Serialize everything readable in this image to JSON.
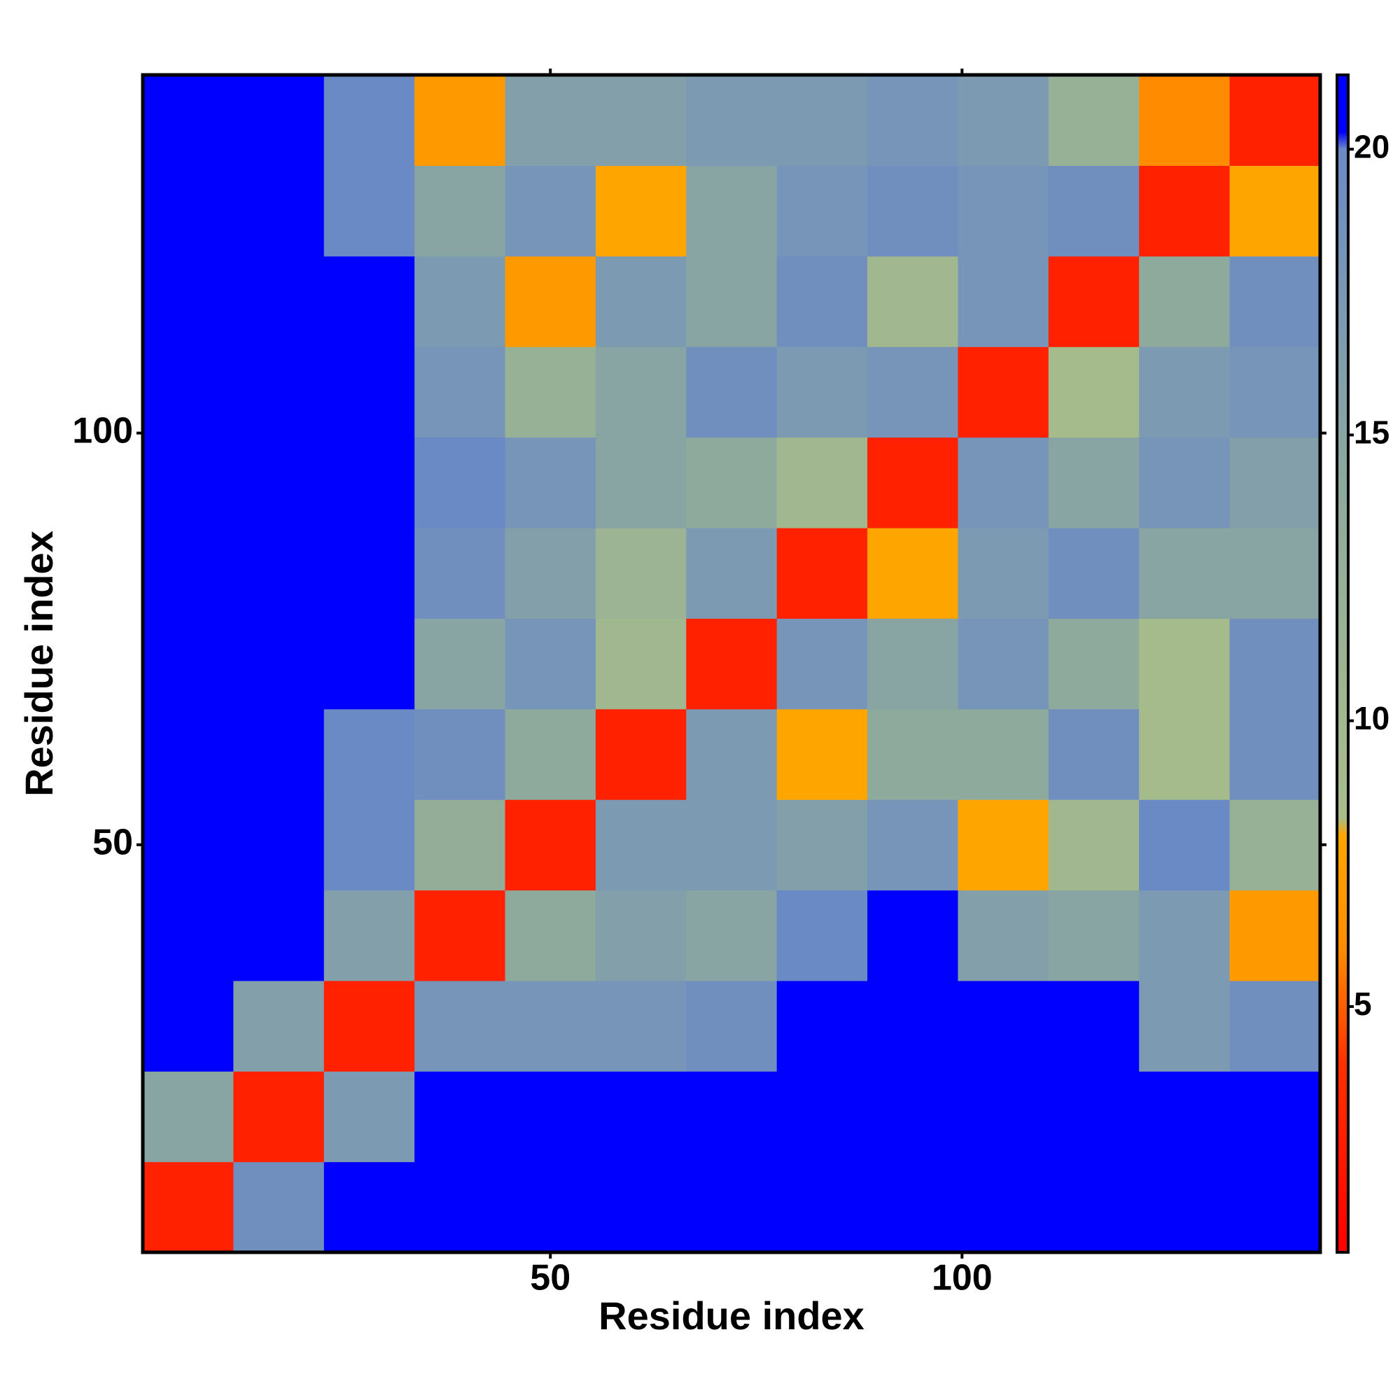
{
  "chart_data": {
    "type": "heatmap",
    "xlabel": "Residue index",
    "ylabel": "Residue index",
    "x": [
      6,
      17,
      28,
      39,
      50,
      61,
      72,
      83,
      94,
      105,
      116,
      127,
      138
    ],
    "y": [
      6,
      17,
      28,
      39,
      50,
      61,
      72,
      83,
      94,
      105,
      116,
      127,
      138
    ],
    "z": [
      [
        3,
        19,
        21,
        21,
        21,
        21,
        21,
        21,
        21,
        21,
        21,
        21,
        21
      ],
      [
        15,
        3,
        17,
        21,
        21,
        21,
        21,
        21,
        21,
        21,
        21,
        21,
        21
      ],
      [
        21,
        16,
        3,
        18,
        18,
        18,
        19,
        20.5,
        21,
        21,
        20.5,
        17,
        19
      ],
      [
        21,
        21,
        16,
        3,
        14,
        16,
        15,
        20,
        20.5,
        16,
        15,
        17,
        7
      ],
      [
        21,
        21,
        20,
        13,
        3,
        17,
        17,
        16,
        18,
        8,
        10,
        20,
        12
      ],
      [
        21,
        21,
        20,
        19,
        14,
        3,
        17,
        8,
        14,
        14,
        19,
        9,
        19
      ],
      [
        21,
        21,
        20.5,
        15,
        18,
        10,
        3,
        18,
        15,
        18,
        14,
        9,
        19
      ],
      [
        21,
        21,
        21,
        19,
        16,
        11,
        17,
        3,
        8,
        17,
        19,
        15,
        15
      ],
      [
        21,
        21,
        21,
        20,
        18,
        15,
        14,
        10,
        3,
        18,
        15,
        18,
        16
      ],
      [
        21,
        21,
        21,
        18,
        12,
        15,
        19,
        17,
        18,
        3,
        9,
        17,
        18
      ],
      [
        21,
        21,
        21,
        17,
        7,
        17,
        15,
        19,
        10,
        18,
        3,
        14,
        19
      ],
      [
        21,
        21,
        20,
        15,
        18,
        8,
        15,
        18,
        19,
        18,
        19,
        3,
        8
      ],
      [
        21,
        21,
        20,
        7,
        16,
        16,
        17,
        17,
        18,
        17,
        12,
        6,
        3
      ]
    ],
    "xlim": [
      0.5,
      143.5
    ],
    "ylim": [
      0.5,
      143.5
    ],
    "xticks": [
      50,
      100
    ],
    "yticks": [
      50,
      100
    ],
    "colorbar": {
      "zlim": [
        0.7,
        21.3
      ],
      "zticks": [
        5,
        10,
        15,
        20
      ]
    },
    "colorscale": [
      [
        0.7,
        "#ff0000"
      ],
      [
        4,
        "#ff3000"
      ],
      [
        6,
        "#ff8c00"
      ],
      [
        8,
        "#ffa500"
      ],
      [
        8.3,
        "#a9bd8a"
      ],
      [
        14,
        "#8eaa9c"
      ],
      [
        20,
        "#6a8ac6"
      ],
      [
        20.3,
        "#0000ff"
      ],
      [
        21.3,
        "#0000ff"
      ]
    ]
  }
}
